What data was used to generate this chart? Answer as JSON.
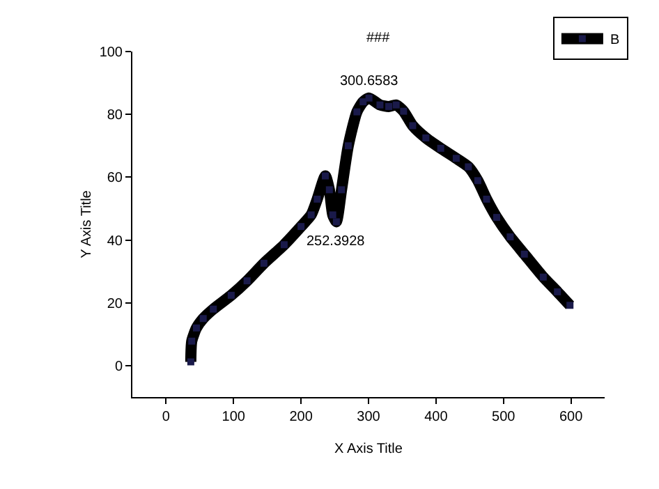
{
  "chart_data": {
    "type": "line",
    "xlabel": "X Axis Title",
    "ylabel": "Y Axis Title",
    "xlim": [
      -50,
      650
    ],
    "xticks": [
      0,
      100,
      200,
      300,
      400,
      500,
      600
    ],
    "ylim": [
      -10,
      100
    ],
    "yticks": [
      0,
      20,
      40,
      60,
      80,
      100
    ],
    "grid": false,
    "legend": "top right",
    "marker": "square",
    "line_style": "solid",
    "annotations": [
      "###",
      {
        "text": "300.6583",
        "x": 300.6583,
        "y": 85.2
      },
      {
        "text": "252.3928",
        "x": 252.3928,
        "y": 45.8
      }
    ],
    "series": [
      {
        "name": "B",
        "color": "#000000",
        "x": [
          36.6,
          38,
          45,
          55,
          70,
          96.5,
          120,
          145,
          175,
          200,
          215,
          224,
          236,
          242,
          247,
          252.3928,
          260,
          270,
          282.8,
          292,
          300.6583,
          317,
          330,
          341,
          352,
          365.5,
          385,
          407,
          430,
          448,
          462,
          475,
          490,
          510,
          531,
          559,
          580,
          598.6
        ],
        "values": [
          1.2,
          7.8,
          12,
          15,
          18,
          22.4,
          27,
          32.6,
          38.5,
          44.3,
          48,
          53,
          60.4,
          56,
          48,
          45.8,
          56,
          70,
          80.8,
          84,
          85.2,
          83,
          82.5,
          83,
          81,
          76.4,
          72.5,
          69.2,
          66,
          63.3,
          58.9,
          53,
          47.2,
          41,
          35.5,
          28.2,
          23.5,
          19.2
        ]
      }
    ]
  }
}
